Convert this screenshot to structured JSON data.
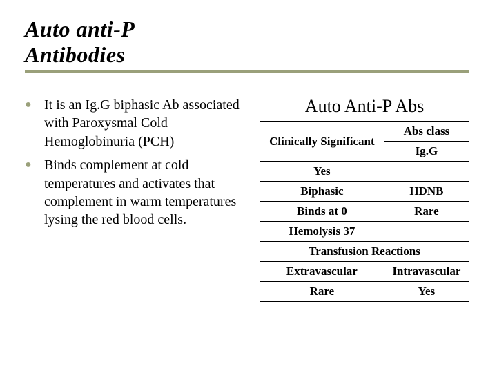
{
  "title": "Auto anti-P Antibodies",
  "bullets": [
    "It is an Ig.G biphasic Ab associated with Paroxysmal Cold Hemoglobinuria (PCH)",
    "Binds complement at cold temperatures and activates that complement in warm temperatures lysing the red blood cells."
  ],
  "panel": {
    "title": "Auto Anti-P Abs",
    "rows": [
      {
        "left": "Clinically Significant",
        "right_top": "Abs class",
        "right_bottom": "Ig.G"
      },
      {
        "left": "Yes",
        "right": ""
      },
      {
        "left": "Biphasic",
        "right": "HDNB"
      },
      {
        "left": "Binds at 0",
        "right": "Rare"
      },
      {
        "left": "Hemolysis 37",
        "right": ""
      }
    ],
    "footer_header": "Transfusion Reactions",
    "footer_cols": [
      "Extravascular",
      "Intravascular"
    ],
    "footer_vals": [
      "Rare",
      "Yes"
    ]
  },
  "style": {
    "accent": "#9aa07a",
    "title_fontsize": 32,
    "body_fontsize": 20,
    "panel_title_fontsize": 26,
    "table_fontsize": 17,
    "border_color": "#000000",
    "background": "#ffffff"
  }
}
